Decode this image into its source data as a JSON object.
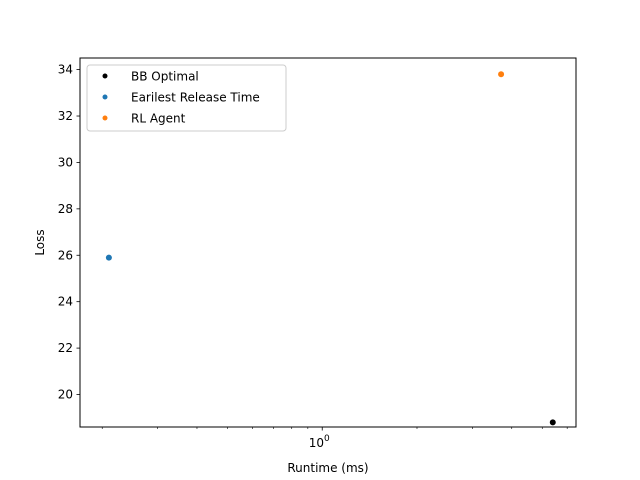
{
  "chart_data": {
    "type": "scatter",
    "xlabel": "Runtime (ms)",
    "ylabel": "Loss",
    "x_scale": "log",
    "xlim": [
      0.17,
      6.4
    ],
    "ylim": [
      18.6,
      34.5
    ],
    "x_ticks": [
      {
        "value": 1,
        "label": "10",
        "exp": "0"
      }
    ],
    "y_ticks": [
      20,
      22,
      24,
      26,
      28,
      30,
      32,
      34
    ],
    "series": [
      {
        "name": "BB Optimal",
        "color": "#000000",
        "points": [
          {
            "x": 5.4,
            "y": 18.8
          }
        ]
      },
      {
        "name": "Earilest Release Time",
        "color": "#1f77b4",
        "points": [
          {
            "x": 0.21,
            "y": 25.9
          }
        ]
      },
      {
        "name": "RL Agent",
        "color": "#ff7f0e",
        "points": [
          {
            "x": 3.7,
            "y": 33.8
          }
        ]
      }
    ],
    "legend": {
      "position": "upper-left"
    },
    "grid": false
  }
}
